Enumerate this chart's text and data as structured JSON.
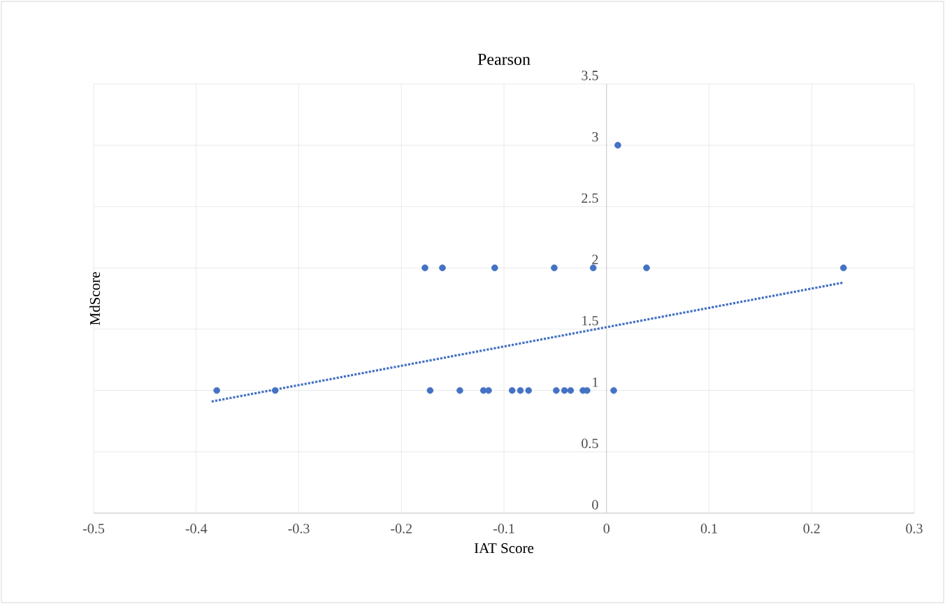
{
  "chart_data": {
    "type": "scatter",
    "title": "Pearson",
    "xlabel": "IAT Score",
    "ylabel": "MdScore",
    "xlim": [
      -0.5,
      0.3
    ],
    "ylim": [
      0,
      3.5
    ],
    "xticks": [
      -0.5,
      -0.4,
      -0.3,
      -0.2,
      -0.1,
      0,
      0.1,
      0.2,
      0.3
    ],
    "yticks": [
      0,
      0.5,
      1,
      1.5,
      2,
      2.5,
      3,
      3.5
    ],
    "grid": true,
    "series": [
      {
        "type": "scatter",
        "color": "#4472c4",
        "marker": "circle",
        "x": [
          -0.177,
          -0.16,
          -0.109,
          -0.051,
          -0.013,
          0.039,
          0.231,
          0.011,
          -0.38,
          -0.323,
          -0.172,
          -0.143,
          -0.12,
          -0.115,
          -0.092,
          -0.084,
          -0.076,
          -0.049,
          -0.041,
          -0.035,
          -0.023,
          -0.019,
          0.007
        ],
        "values": [
          2,
          2,
          2,
          2,
          2,
          2,
          2,
          3,
          1,
          1,
          1,
          1,
          1,
          1,
          1,
          1,
          1,
          1,
          1,
          1,
          1,
          1,
          1
        ]
      },
      {
        "type": "line",
        "color": "#4472c4",
        "marker": "none",
        "line_style": "dotted",
        "x": [
          -0.385,
          0.231
        ],
        "values": [
          0.91,
          1.88
        ]
      }
    ]
  }
}
